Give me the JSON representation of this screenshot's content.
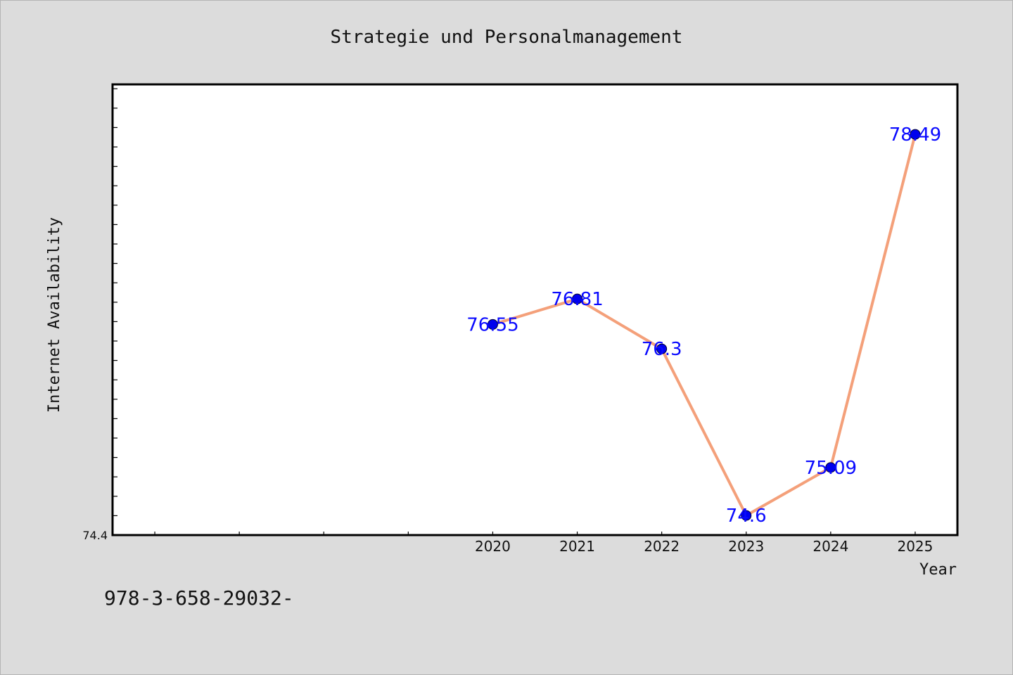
{
  "chart_data": {
    "type": "line",
    "title": "Strategie und Personalmanagement",
    "xlabel": "Year",
    "ylabel": "Internet Availability",
    "categories": [
      "2020",
      "2021",
      "2022",
      "2023",
      "2024",
      "2025"
    ],
    "values": [
      76.55,
      76.81,
      76.3,
      74.6,
      75.09,
      78.49
    ],
    "data_labels": [
      "76.55",
      "76.81",
      "76.3",
      "74.6",
      "75.09",
      "78.49"
    ],
    "ytick_labels": [
      "74.4"
    ],
    "ylim": [
      74.4,
      79.0
    ],
    "x_slots": 10,
    "grid": false,
    "line_color": "#f4a07a",
    "marker_color": "#0000ee",
    "label_color": "#0a0aff"
  },
  "footer": {
    "text": "978-3-658-29032-"
  }
}
